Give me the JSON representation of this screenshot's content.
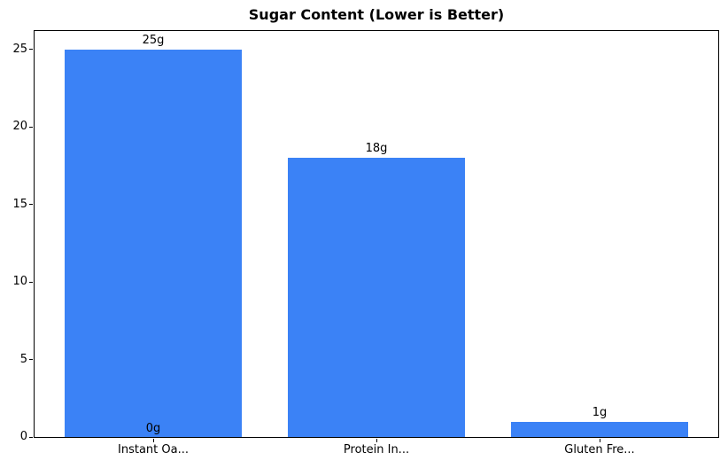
{
  "chart_data": {
    "type": "bar",
    "title": "Sugar Content (Lower is Better)",
    "categories": [
      "Instant Oa...",
      "Protein In...",
      "Gluten Fre..."
    ],
    "values": [
      25,
      18,
      1
    ],
    "bar_labels": [
      "25g",
      "18g",
      "1g"
    ],
    "extra_annotations": [
      {
        "text": "0g",
        "category_index": 0,
        "value": 0
      }
    ],
    "yticks": [
      0,
      5,
      10,
      15,
      20,
      25
    ],
    "ylim": [
      0,
      26.2
    ],
    "xlabel": "",
    "ylabel": "",
    "grid": false,
    "legend": null,
    "bar_color": "#3b82f6",
    "axis_color": "#000000",
    "text_color": "#000000",
    "background_color": "#ffffff"
  }
}
